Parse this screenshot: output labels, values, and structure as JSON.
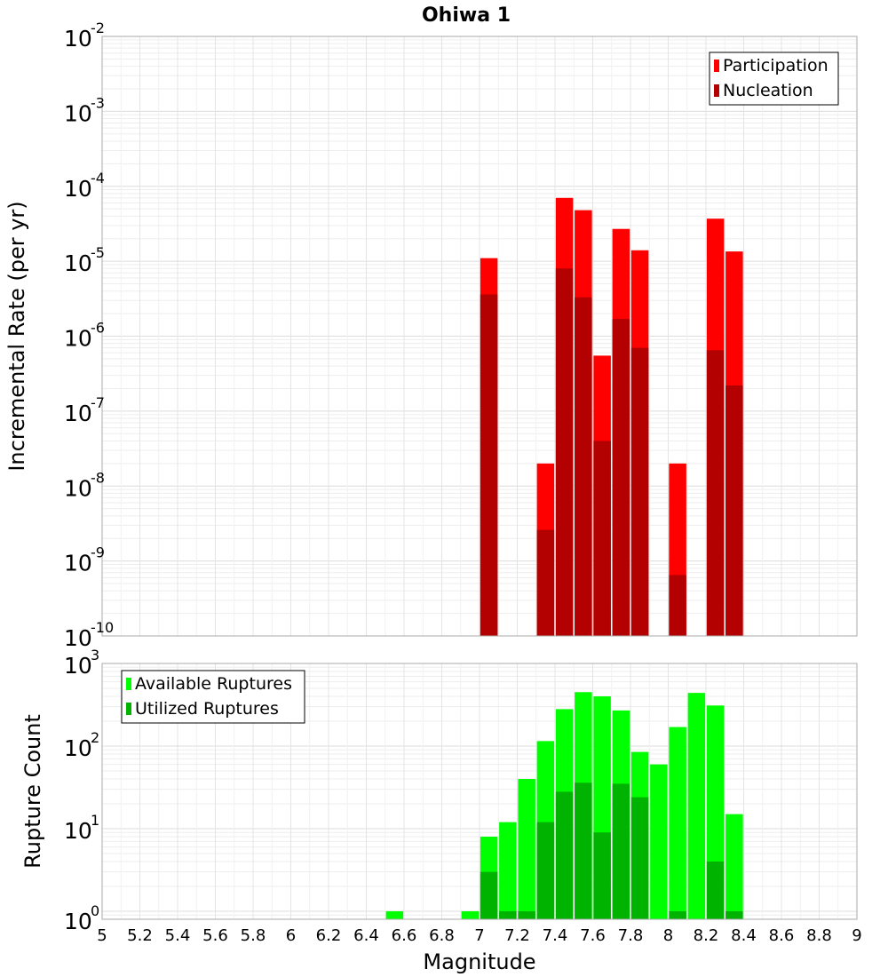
{
  "chart_data": [
    {
      "type": "bar",
      "title": "Ohiwa 1",
      "xlabel": "",
      "ylabel": "Incremental Rate (per yr)",
      "yscale": "log",
      "xlim": [
        5,
        9
      ],
      "ylim": [
        1e-10,
        0.01
      ],
      "y_ticks": [
        {
          "base": "10",
          "exp": "-10"
        },
        {
          "base": "10",
          "exp": "-9"
        },
        {
          "base": "10",
          "exp": "-8"
        },
        {
          "base": "10",
          "exp": "-7"
        },
        {
          "base": "10",
          "exp": "-6"
        },
        {
          "base": "10",
          "exp": "-5"
        },
        {
          "base": "10",
          "exp": "-4"
        },
        {
          "base": "10",
          "exp": "-3"
        },
        {
          "base": "10",
          "exp": "-2"
        }
      ],
      "legend_position": "top-right",
      "x": [
        7.05,
        7.35,
        7.45,
        7.55,
        7.65,
        7.75,
        7.85,
        8.05,
        8.25,
        8.35
      ],
      "series": [
        {
          "name": "Participation",
          "color": "#ff0000",
          "values": [
            1.1e-05,
            2e-08,
            7e-05,
            4.8e-05,
            5.5e-07,
            2.7e-05,
            1.4e-05,
            2e-08,
            3.7e-05,
            1.35e-05
          ]
        },
        {
          "name": "Nucleation",
          "color": "#b30000",
          "values": [
            3.6e-06,
            2.6e-09,
            8e-06,
            3.3e-06,
            4e-08,
            1.7e-06,
            7e-07,
            6.5e-10,
            6.5e-07,
            2.2e-07
          ]
        }
      ]
    },
    {
      "type": "bar",
      "title": "",
      "xlabel": "Magnitude",
      "ylabel": "Rupture Count",
      "yscale": "log",
      "xlim": [
        5,
        9
      ],
      "ylim": [
        0.8,
        1000
      ],
      "y_ticks": [
        {
          "base": "10",
          "exp": "0"
        },
        {
          "base": "10",
          "exp": "1"
        },
        {
          "base": "10",
          "exp": "2"
        },
        {
          "base": "10",
          "exp": "3"
        }
      ],
      "x_tick_labels": [
        "5",
        "5.2",
        "5.4",
        "5.6",
        "5.8",
        "6",
        "6.2",
        "6.4",
        "6.6",
        "6.8",
        "7",
        "7.2",
        "7.4",
        "7.6",
        "7.8",
        "8",
        "8.2",
        "8.4",
        "8.6",
        "8.8",
        "9"
      ],
      "legend_position": "top-left",
      "x": [
        6.55,
        6.95,
        7.05,
        7.15,
        7.25,
        7.35,
        7.45,
        7.55,
        7.65,
        7.75,
        7.85,
        7.95,
        8.05,
        8.15,
        8.25,
        8.35
      ],
      "series": [
        {
          "name": "Available Ruptures",
          "color": "#00ff00",
          "values": [
            1,
            1,
            8,
            12,
            40,
            115,
            280,
            450,
            400,
            270,
            85,
            60,
            170,
            440,
            310,
            15
          ]
        },
        {
          "name": "Utilized Ruptures",
          "color": "#00b300",
          "values": [
            0,
            0,
            3,
            1,
            1,
            12,
            28,
            36,
            9,
            35,
            24,
            0,
            1,
            0,
            4,
            1
          ]
        }
      ]
    }
  ]
}
